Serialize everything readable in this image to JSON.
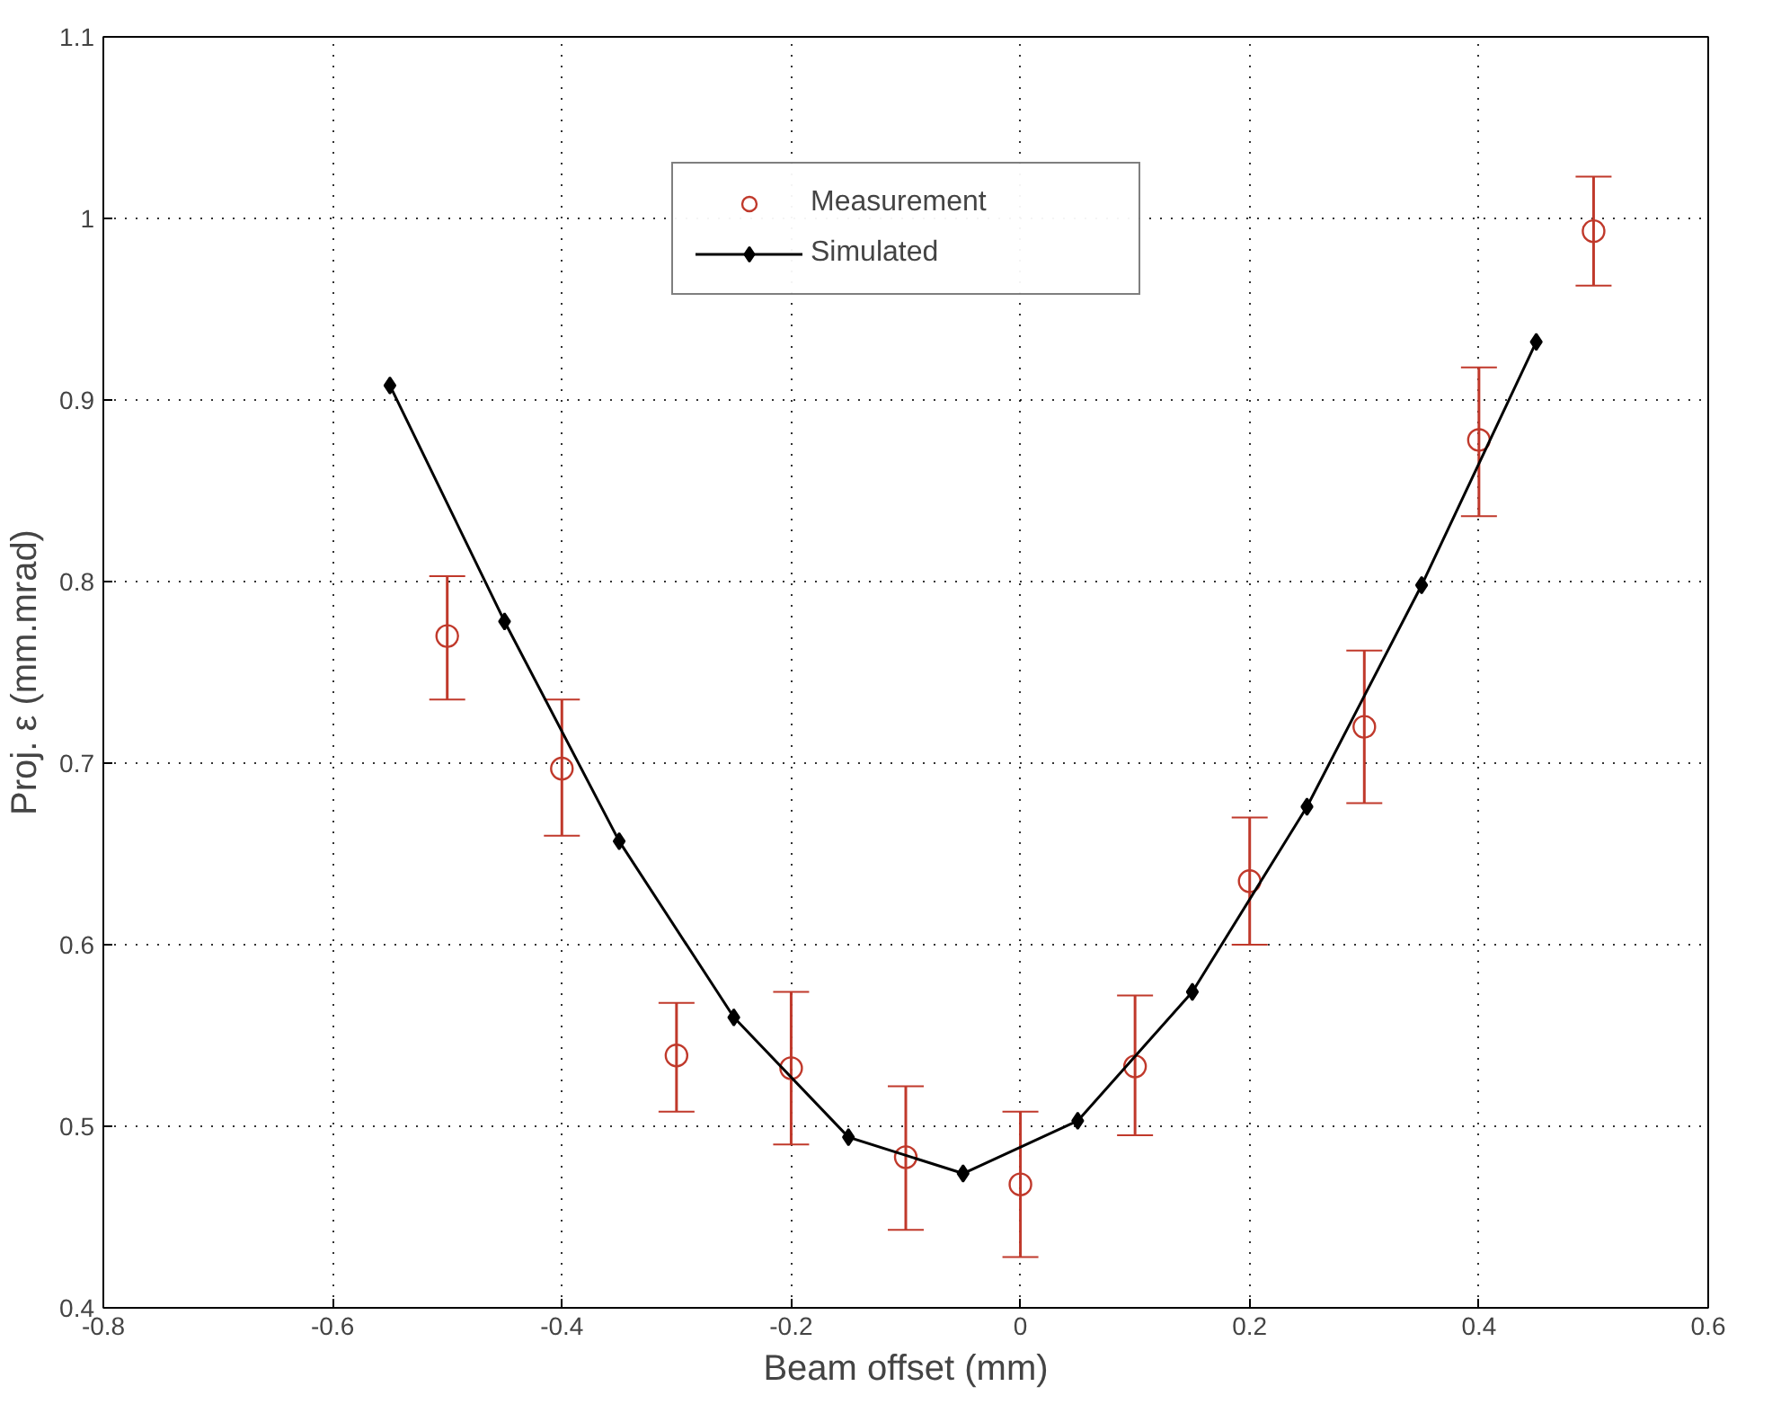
{
  "chart_data": {
    "type": "line",
    "xlabel": "Beam offset (mm)",
    "ylabel": "Proj. ε (mm.mrad)",
    "xlim": [
      -0.8,
      0.6
    ],
    "xticks": [
      -0.8,
      -0.6,
      -0.4,
      -0.2,
      0,
      0.2,
      0.4,
      0.6
    ],
    "ylim": [
      0.4,
      1.1
    ],
    "yticks": [
      0.4,
      0.5,
      0.6,
      0.7,
      0.8,
      0.9,
      1,
      1.1
    ],
    "grid": true,
    "legend": "top",
    "series": [
      {
        "name": "Measurement",
        "type": "scatter",
        "marker": "circle",
        "color": "#c0392b",
        "x": [
          -0.5,
          -0.4,
          -0.3,
          -0.2,
          -0.1,
          0,
          0.1,
          0.2,
          0.3,
          0.4,
          0.5
        ],
        "values": [
          0.77,
          0.697,
          0.539,
          0.532,
          0.483,
          0.468,
          0.533,
          0.635,
          0.72,
          0.878,
          0.993
        ],
        "errors": [
          [
            0.735,
            0.803
          ],
          [
            0.66,
            0.735
          ],
          [
            0.508,
            0.568
          ],
          [
            0.49,
            0.574
          ],
          [
            0.443,
            0.522
          ],
          [
            0.428,
            0.508
          ],
          [
            0.495,
            0.572
          ],
          [
            0.6,
            0.67
          ],
          [
            0.678,
            0.762
          ],
          [
            0.836,
            0.918
          ],
          [
            0.963,
            1.023
          ]
        ]
      },
      {
        "name": "Simulated",
        "marker": "diamond",
        "line_style": "solid",
        "color": "#000000",
        "x": [
          -0.55,
          -0.45,
          -0.35,
          -0.25,
          -0.15,
          -0.05,
          0.05,
          0.15,
          0.25,
          0.35,
          0.45
        ],
        "values": [
          0.908,
          0.778,
          0.657,
          0.56,
          0.494,
          0.474,
          0.503,
          0.574,
          0.676,
          0.798,
          0.932
        ]
      }
    ]
  }
}
